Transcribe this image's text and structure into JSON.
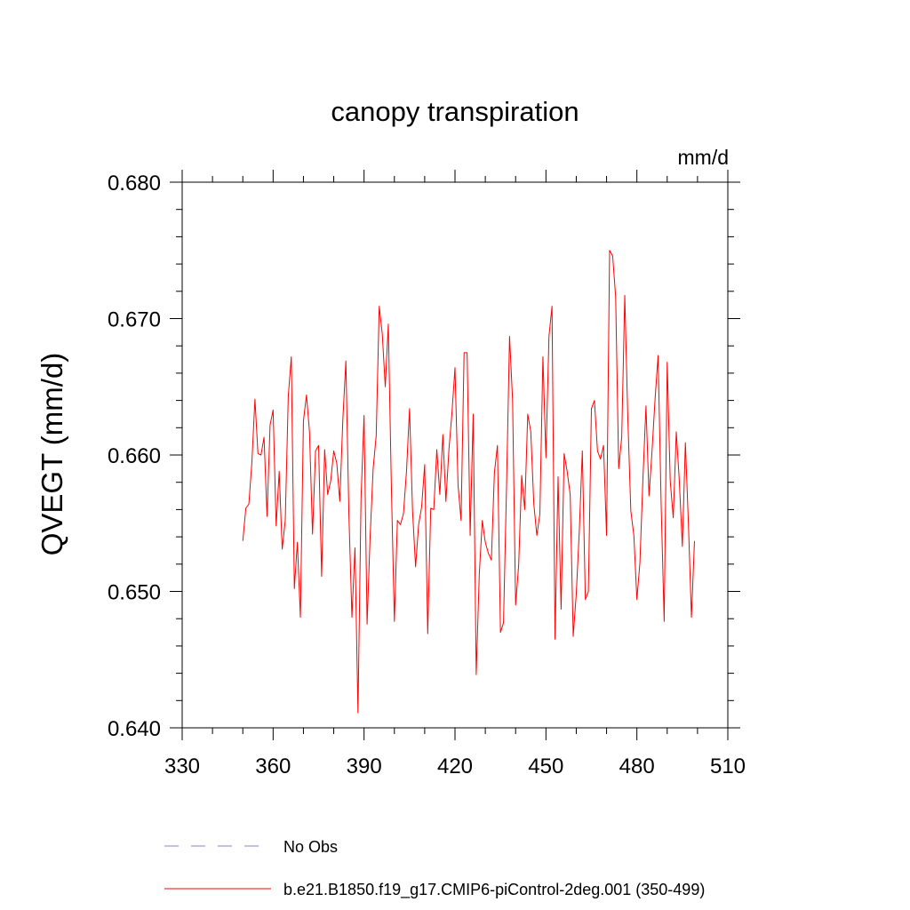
{
  "chart_data": {
    "type": "line",
    "title": "canopy transpiration",
    "units_label": "mm/d",
    "xlabel": "",
    "ylabel": "QVEGT  (mm/d)",
    "xlim": [
      330,
      510
    ],
    "ylim": [
      0.64,
      0.68
    ],
    "x_ticks": [
      330,
      360,
      390,
      420,
      450,
      480,
      510
    ],
    "x_tick_labels": [
      "330",
      "360",
      "390",
      "420",
      "450",
      "480",
      "510"
    ],
    "y_ticks": [
      0.64,
      0.65,
      0.66,
      0.67,
      0.68
    ],
    "y_tick_labels": [
      "0.640",
      "0.650",
      "0.660",
      "0.670",
      "0.680"
    ],
    "grid": false,
    "legend_position": "bottom",
    "series": [
      {
        "name": "No Obs",
        "style": "dashed",
        "color": "#8c82c8",
        "x": [],
        "y": []
      },
      {
        "name": "b.e21.B1850.f19_g17.CMIP6-piControl-2deg.001 (350-499)",
        "style": "solid",
        "color": "#ff0000",
        "x": [
          350,
          351,
          352,
          353,
          354,
          355,
          356,
          357,
          358,
          359,
          360,
          361,
          362,
          363,
          364,
          365,
          366,
          367,
          368,
          369,
          370,
          371,
          372,
          373,
          374,
          375,
          376,
          377,
          378,
          379,
          380,
          381,
          382,
          383,
          384,
          385,
          386,
          387,
          388,
          389,
          390,
          391,
          392,
          393,
          394,
          395,
          396,
          397,
          398,
          399,
          400,
          401,
          402,
          403,
          404,
          405,
          406,
          407,
          408,
          409,
          410,
          411,
          412,
          413,
          414,
          415,
          416,
          417,
          418,
          419,
          420,
          421,
          422,
          423,
          424,
          425,
          426,
          427,
          428,
          429,
          430,
          431,
          432,
          433,
          434,
          435,
          436,
          437,
          438,
          439,
          440,
          441,
          442,
          443,
          444,
          445,
          446,
          447,
          448,
          449,
          450,
          451,
          452,
          453,
          454,
          455,
          456,
          457,
          458,
          459,
          460,
          461,
          462,
          463,
          464,
          465,
          466,
          467,
          468,
          469,
          470,
          471,
          472,
          473,
          474,
          475,
          476,
          477,
          478,
          479,
          480,
          481,
          482,
          483,
          484,
          485,
          486,
          487,
          488,
          489,
          490,
          491,
          492,
          493,
          494,
          495,
          496,
          497,
          498,
          499
        ],
        "y": [
          0.6537,
          0.6561,
          0.6564,
          0.6595,
          0.6641,
          0.6601,
          0.66,
          0.6613,
          0.6555,
          0.6622,
          0.6633,
          0.6548,
          0.6588,
          0.6531,
          0.6552,
          0.6643,
          0.6672,
          0.6502,
          0.6536,
          0.6481,
          0.6625,
          0.6644,
          0.6617,
          0.6542,
          0.6603,
          0.6607,
          0.6511,
          0.6604,
          0.6571,
          0.6581,
          0.6603,
          0.6594,
          0.6566,
          0.6626,
          0.6669,
          0.6556,
          0.6481,
          0.6532,
          0.6411,
          0.6568,
          0.6629,
          0.6476,
          0.654,
          0.659,
          0.6614,
          0.6709,
          0.6689,
          0.665,
          0.6696,
          0.6578,
          0.6478,
          0.6552,
          0.6549,
          0.6557,
          0.6588,
          0.6634,
          0.6559,
          0.6518,
          0.6549,
          0.6562,
          0.6593,
          0.6469,
          0.6561,
          0.656,
          0.6604,
          0.6571,
          0.6615,
          0.6566,
          0.6604,
          0.6631,
          0.6664,
          0.6578,
          0.6552,
          0.6675,
          0.6675,
          0.6541,
          0.663,
          0.6439,
          0.6512,
          0.6552,
          0.6536,
          0.6528,
          0.6523,
          0.6587,
          0.6607,
          0.647,
          0.6477,
          0.6577,
          0.6687,
          0.664,
          0.649,
          0.6519,
          0.6585,
          0.656,
          0.663,
          0.6617,
          0.6564,
          0.6541,
          0.6557,
          0.6672,
          0.6598,
          0.6687,
          0.6709,
          0.6465,
          0.6584,
          0.6487,
          0.6601,
          0.6588,
          0.6571,
          0.6467,
          0.6498,
          0.6544,
          0.6603,
          0.6494,
          0.65,
          0.6634,
          0.664,
          0.6603,
          0.6597,
          0.6607,
          0.6541,
          0.675,
          0.6746,
          0.6716,
          0.659,
          0.6613,
          0.6717,
          0.6628,
          0.6559,
          0.6541,
          0.6494,
          0.6521,
          0.6583,
          0.6636,
          0.657,
          0.6603,
          0.6641,
          0.6673,
          0.6564,
          0.6478,
          0.6668,
          0.6581,
          0.6554,
          0.6617,
          0.6581,
          0.6533,
          0.6609,
          0.655,
          0.6481,
          0.6537
        ]
      }
    ]
  }
}
